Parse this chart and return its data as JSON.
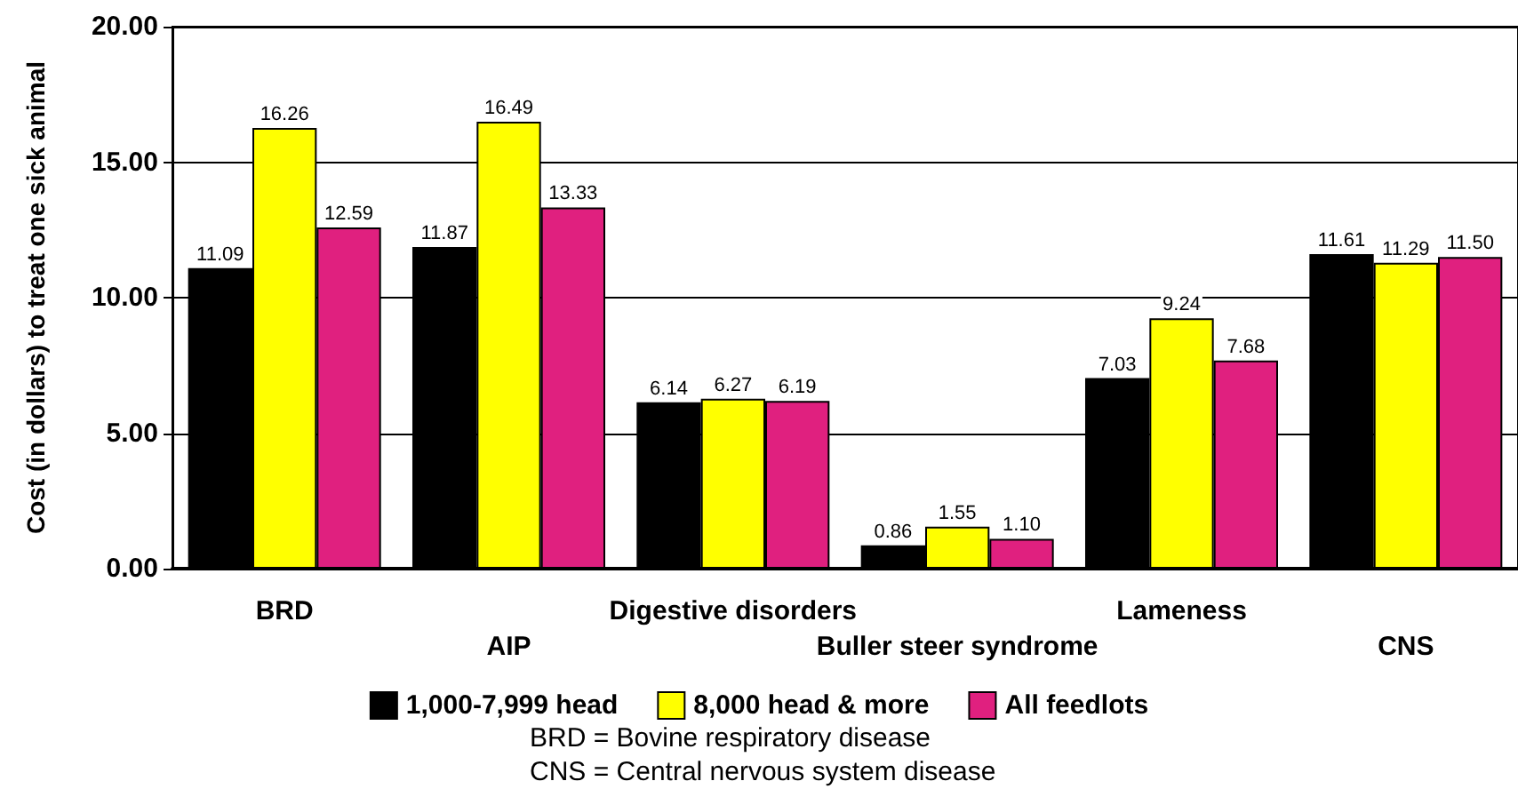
{
  "chart_data": {
    "type": "bar",
    "ylabel": "Cost (in dollars) to treat one sick animal",
    "categories": [
      "BRD",
      "AIP",
      "Digestive disorders",
      "Buller steer syndrome",
      "Lameness",
      "CNS"
    ],
    "series": [
      {
        "name": "1,000-7,999 head",
        "color": "#000000",
        "values": [
          11.09,
          11.87,
          6.14,
          0.86,
          7.03,
          11.61
        ],
        "value_labels": [
          "11.09",
          "11.87",
          "6.14",
          "0.86",
          "7.03",
          "11.61"
        ]
      },
      {
        "name": "8,000 head & more",
        "color": "#ffff00",
        "values": [
          16.26,
          16.49,
          6.27,
          1.55,
          9.24,
          11.29
        ],
        "value_labels": [
          "16.26",
          "16.49",
          "6.27",
          "1.55",
          "9.24",
          "11.29"
        ]
      },
      {
        "name": "All feedlots",
        "color": "#e0207f",
        "values": [
          12.59,
          13.33,
          6.19,
          1.1,
          7.68,
          11.5
        ],
        "value_labels": [
          "12.59",
          "13.33",
          "6.19",
          "1.10",
          "7.68",
          "11.50"
        ]
      }
    ],
    "ylim": [
      0,
      20
    ],
    "yticks": [
      {
        "value": 0,
        "label": "0.00"
      },
      {
        "value": 5,
        "label": "5.00"
      },
      {
        "value": 10,
        "label": "10.00"
      },
      {
        "value": 15,
        "label": "15.00"
      },
      {
        "value": 20,
        "label": "20.00"
      }
    ],
    "grid": "y",
    "legend": "bottom",
    "annotations": [
      "BRD = Bovine respiratory disease",
      "CNS = Central nervous system disease"
    ]
  }
}
